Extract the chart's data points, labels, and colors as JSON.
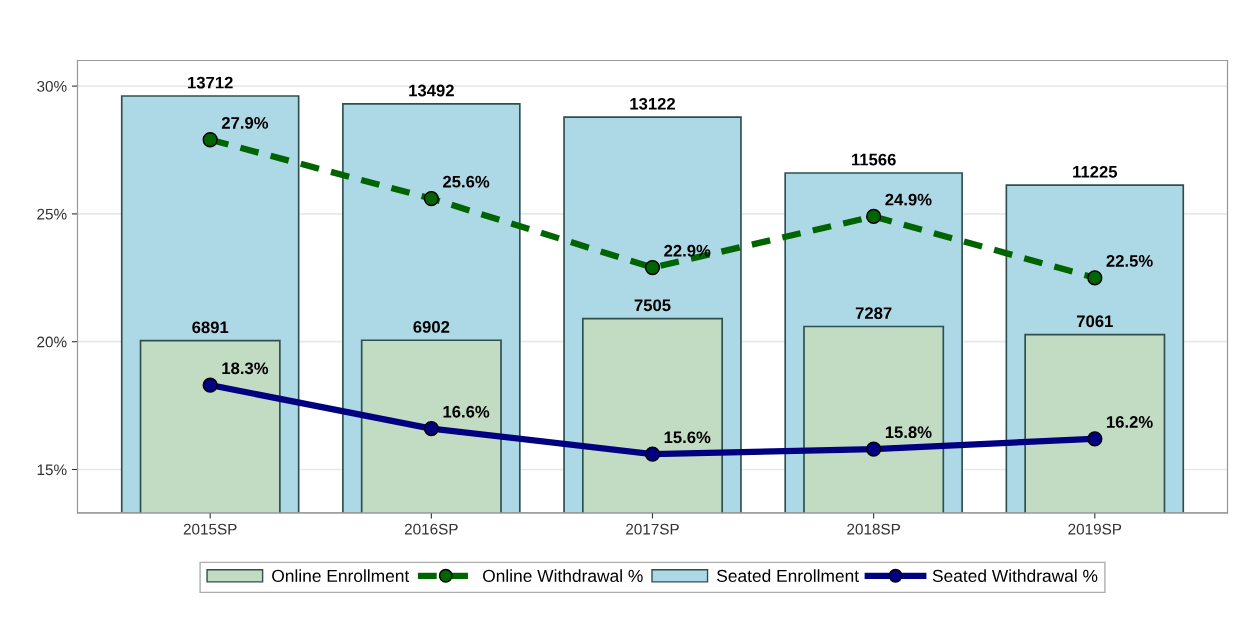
{
  "chart_data": {
    "type": "bar",
    "categories": [
      "2015SP",
      "2016SP",
      "2017SP",
      "2018SP",
      "2019SP"
    ],
    "series": [
      {
        "name": "Online Enrollment",
        "axis": "y2",
        "color": "#c2dcc4",
        "values": [
          6891,
          6902,
          7505,
          7287,
          7061
        ]
      },
      {
        "name": "Online Withdrawal %",
        "type": "line",
        "color": "#006400",
        "line_style": "dashed",
        "marker": "circle",
        "values": [
          27.9,
          25.6,
          22.9,
          24.9,
          22.5
        ],
        "value_labels": [
          "27.9%",
          "25.6%",
          "22.9%",
          "24.9%",
          "22.5%"
        ]
      },
      {
        "name": "Seated Enrollment",
        "axis": "y2",
        "color": "#add8e6",
        "values": [
          13712,
          13492,
          13122,
          11566,
          11225
        ]
      },
      {
        "name": "Seated Withdrawal %",
        "type": "line",
        "color": "#000080",
        "line_style": "solid",
        "marker": "circle",
        "values": [
          18.3,
          16.6,
          15.6,
          15.8,
          16.2
        ],
        "value_labels": [
          "18.3%",
          "16.6%",
          "15.6%",
          "15.8%",
          "16.2%"
        ]
      }
    ],
    "ylim": [
      13.3,
      31.0
    ],
    "yticks": [
      {
        "value": 15,
        "label": "15%"
      },
      {
        "value": 20,
        "label": "20%"
      },
      {
        "value": 25,
        "label": "25%"
      },
      {
        "value": 30,
        "label": "30%"
      }
    ],
    "y2lim": [
      2090,
      14700
    ],
    "data_labels": true,
    "grid": "y",
    "legend": "bottom"
  }
}
